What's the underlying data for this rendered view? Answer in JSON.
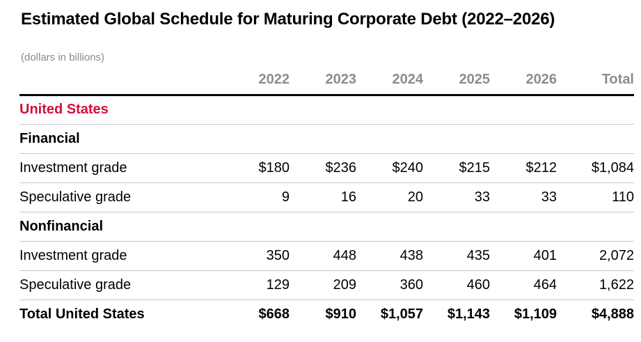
{
  "title": "Estimated Global Schedule for Maturing Corporate Debt (2022–2026)",
  "subtitle": "(dollars in billions)",
  "colors": {
    "region_red": "#d0103a",
    "header_gray": "#8c8c8c",
    "divider_gray": "#c9c9c9",
    "header_rule_black": "#000000"
  },
  "table": {
    "columns": [
      "2022",
      "2023",
      "2024",
      "2025",
      "2026",
      "Total"
    ],
    "rows": [
      {
        "type": "region",
        "label": "United States",
        "values": [
          "",
          "",
          "",
          "",
          "",
          ""
        ]
      },
      {
        "type": "section",
        "label": "Financial",
        "values": [
          "",
          "",
          "",
          "",
          "",
          ""
        ]
      },
      {
        "type": "data",
        "label": "Investment grade",
        "values": [
          "$180",
          "$236",
          "$240",
          "$215",
          "$212",
          "$1,084"
        ]
      },
      {
        "type": "data",
        "label": "Speculative grade",
        "values": [
          "9",
          "16",
          "20",
          "33",
          "33",
          "110"
        ]
      },
      {
        "type": "section",
        "label": "Nonfinancial",
        "values": [
          "",
          "",
          "",
          "",
          "",
          ""
        ]
      },
      {
        "type": "data",
        "label": "Investment grade",
        "values": [
          "350",
          "448",
          "438",
          "435",
          "401",
          "2,072"
        ]
      },
      {
        "type": "data",
        "label": "Speculative grade",
        "values": [
          "129",
          "209",
          "360",
          "460",
          "464",
          "1,622"
        ]
      },
      {
        "type": "total",
        "label": "Total United States",
        "values": [
          "$668",
          "$910",
          "$1,057",
          "$1,143",
          "$1,109",
          "$4,888"
        ]
      }
    ]
  },
  "chart_data": {
    "type": "table",
    "title": "Estimated Global Schedule for Maturing Corporate Debt (2022–2026)",
    "units": "dollars in billions",
    "columns": [
      "2022",
      "2023",
      "2024",
      "2025",
      "2026",
      "Total"
    ],
    "groups": [
      {
        "region": "United States",
        "sections": [
          {
            "name": "Financial",
            "rows": [
              {
                "label": "Investment grade",
                "values": [
                  180,
                  236,
                  240,
                  215,
                  212,
                  1084
                ]
              },
              {
                "label": "Speculative grade",
                "values": [
                  9,
                  16,
                  20,
                  33,
                  33,
                  110
                ]
              }
            ]
          },
          {
            "name": "Nonfinancial",
            "rows": [
              {
                "label": "Investment grade",
                "values": [
                  350,
                  448,
                  438,
                  435,
                  401,
                  2072
                ]
              },
              {
                "label": "Speculative grade",
                "values": [
                  129,
                  209,
                  360,
                  460,
                  464,
                  1622
                ]
              }
            ]
          }
        ],
        "total": {
          "label": "Total United States",
          "values": [
            668,
            910,
            1057,
            1143,
            1109,
            4888
          ]
        }
      }
    ]
  }
}
